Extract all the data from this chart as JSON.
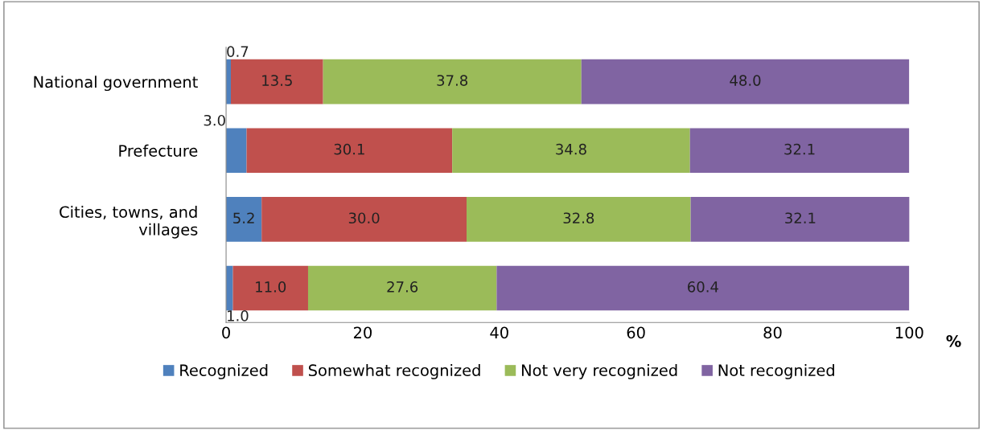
{
  "chart_data": {
    "type": "bar",
    "orientation": "horizontal",
    "stacked": true,
    "categories": [
      "National government",
      "Prefecture",
      "Cities, towns, and villages",
      null
    ],
    "series": [
      {
        "name": "Recognized",
        "color": "#4f81bd",
        "values": [
          0.7,
          3.0,
          5.2,
          1.0
        ],
        "value_labels": [
          "0.7",
          "3.0",
          "5.2",
          "1.0"
        ]
      },
      {
        "name": "Somewhat recognized",
        "color": "#c0504d",
        "values": [
          13.5,
          30.1,
          30.0,
          11.0
        ],
        "value_labels": [
          "13.5",
          "30.1",
          "30.0",
          "11.0"
        ]
      },
      {
        "name": "Not very recognized",
        "color": "#9bbb59",
        "values": [
          37.8,
          34.8,
          32.8,
          27.6
        ],
        "value_labels": [
          "37.8",
          "34.8",
          "32.8",
          "27.6"
        ]
      },
      {
        "name": "Not recognized",
        "color": "#8064a2",
        "values": [
          48.0,
          32.1,
          32.1,
          60.4
        ],
        "value_labels": [
          "48.0",
          "32.1",
          "32.1",
          "60.4"
        ]
      }
    ],
    "xlim": [
      0,
      100
    ],
    "xticks": [
      0,
      20,
      40,
      60,
      80,
      100
    ],
    "xlabel": "%",
    "legend": "bottom",
    "grid": false
  }
}
